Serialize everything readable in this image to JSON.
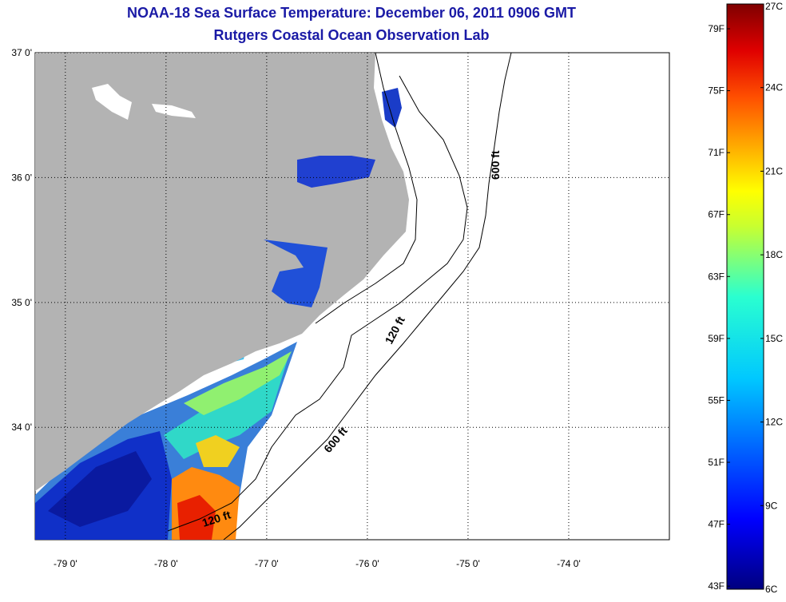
{
  "header": {
    "title": "NOAA-18 Sea Surface Temperature:  December 06, 2011 0906 GMT",
    "subtitle": "Rutgers Coastal Ocean Observation Lab"
  },
  "map": {
    "lat_labels": [
      "37 0'",
      "36 0'",
      "35 0'",
      "34 0'"
    ],
    "lon_labels": [
      "-79 0'",
      "-78 0'",
      "-77 0'",
      "-76 0'",
      "-75 0'",
      "-74 0'"
    ],
    "lat_values": [
      37,
      36,
      35,
      34
    ],
    "lon_values": [
      -79,
      -78,
      -77,
      -76,
      -75,
      -74
    ],
    "lat_range": [
      33.1,
      37.0
    ],
    "lon_range": [
      -79.3,
      -73.0
    ],
    "contour_labels": [
      "600 ft",
      "120 ft",
      "600 ft",
      "120 ft"
    ],
    "colors": {
      "land": "#b3b3b3",
      "ocean_nodata": "#ffffff",
      "title": "#1a1aa6"
    }
  },
  "colorbar": {
    "f_labels": [
      "79F",
      "75F",
      "71F",
      "67F",
      "63F",
      "59F",
      "55F",
      "51F",
      "47F",
      "43F"
    ],
    "c_labels": [
      "27C",
      "24C",
      "21C",
      "18C",
      "15C",
      "12C",
      "9C",
      "6C"
    ],
    "f_values": [
      79,
      75,
      71,
      67,
      63,
      59,
      55,
      51,
      47,
      43
    ],
    "c_values": [
      27,
      24,
      21,
      18,
      15,
      12,
      9,
      6
    ],
    "range_c": [
      6,
      27
    ]
  }
}
